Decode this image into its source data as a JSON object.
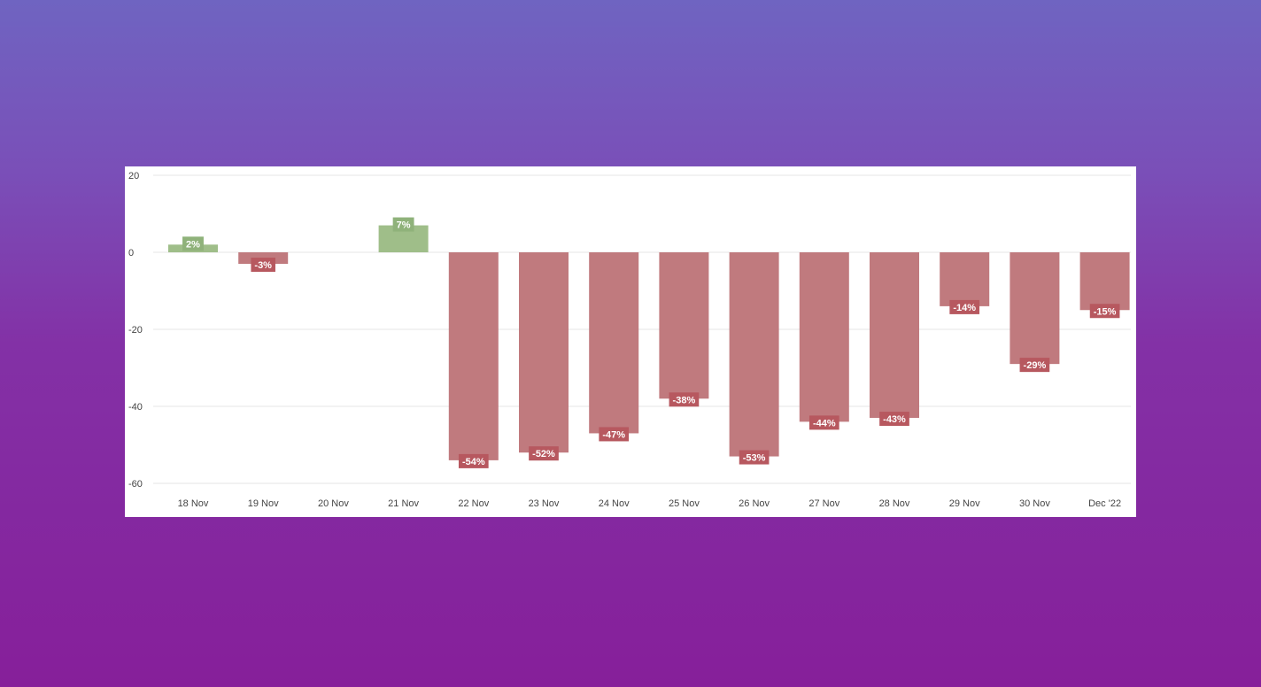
{
  "chart_data": {
    "type": "bar",
    "categories": [
      "18 Nov",
      "19 Nov",
      "20 Nov",
      "21 Nov",
      "22 Nov",
      "23 Nov",
      "24 Nov",
      "25 Nov",
      "26 Nov",
      "27 Nov",
      "28 Nov",
      "29 Nov",
      "30 Nov",
      "Dec '22"
    ],
    "values": [
      2,
      -3,
      0,
      7,
      -54,
      -52,
      -47,
      -38,
      -53,
      -44,
      -43,
      -14,
      -29,
      -15
    ],
    "labels": [
      "2%",
      "-3%",
      "",
      "7%",
      "-54%",
      "-52%",
      "-47%",
      "-38%",
      "-53%",
      "-44%",
      "-43%",
      "-14%",
      "-29%",
      "-15%"
    ],
    "yticks": [
      20,
      0,
      -20,
      -40,
      -60
    ],
    "ylim": [
      -60,
      20
    ],
    "grid": true,
    "legend": "none",
    "colors": {
      "positive": "#9fbe89",
      "negative": "#c07a7e",
      "positive_label_bg": "#8fb27a",
      "negative_label_bg": "#b7585f",
      "grid": "#e6e6e6",
      "tick_text": "#444444"
    }
  }
}
